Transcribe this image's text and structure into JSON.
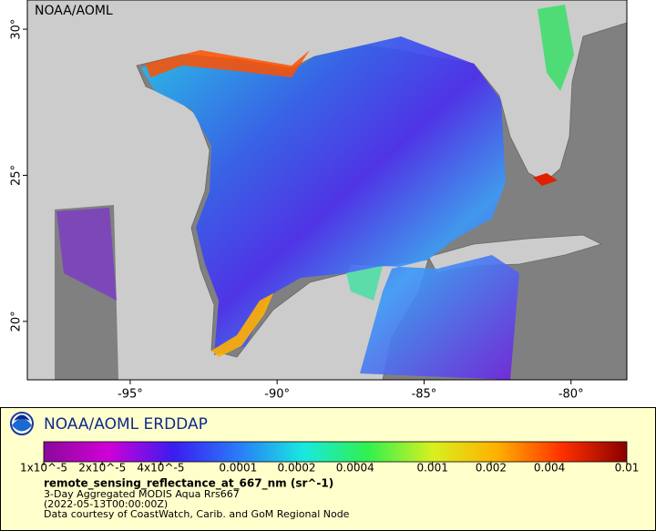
{
  "map": {
    "source_label": "NOAA/AOML",
    "xlim": [
      -98.5,
      -78.1
    ],
    "ylim": [
      18,
      31
    ],
    "xticks": [
      {
        "value": -95,
        "label": "-95°"
      },
      {
        "value": -90,
        "label": "-90°"
      },
      {
        "value": -85,
        "label": "-85°"
      },
      {
        "value": -80,
        "label": "-80°"
      }
    ],
    "yticks": [
      {
        "value": 30,
        "label": "30°"
      },
      {
        "value": 25,
        "label": "25°"
      },
      {
        "value": 20,
        "label": "20°"
      }
    ]
  },
  "legend": {
    "title": "NOAA/AOML ERDDAP",
    "colorbar": {
      "log_scale": true,
      "lim": [
        1e-05,
        0.01
      ],
      "colors": [
        "#8a0a9a",
        "#d000d8",
        "#3a1cf0",
        "#2a7af8",
        "#18e8e0",
        "#30f050",
        "#d8f020",
        "#ffb000",
        "#ff3000",
        "#8a0000"
      ],
      "ticks": [
        {
          "value": 1e-05,
          "label": "1x10^-5"
        },
        {
          "value": 2e-05,
          "label": "2x10^-5"
        },
        {
          "value": 4e-05,
          "label": "4x10^-5"
        },
        {
          "value": 0.0001,
          "label": "0.0001"
        },
        {
          "value": 0.0002,
          "label": "0.0002"
        },
        {
          "value": 0.0004,
          "label": "0.0004"
        },
        {
          "value": 0.001,
          "label": "0.001"
        },
        {
          "value": 0.002,
          "label": "0.002"
        },
        {
          "value": 0.004,
          "label": "0.004"
        },
        {
          "value": 0.01,
          "label": "0.01"
        }
      ]
    },
    "variable": "remote_sensing_reflectance_at_667_nm (sr^-1)",
    "lines": [
      "3-Day Aggregated MODIS Aqua Rrs667",
      "(2022-05-13T00:00:00Z)",
      "Data courtesy of CoastWatch, Carib. and GoM Regional Node"
    ]
  }
}
